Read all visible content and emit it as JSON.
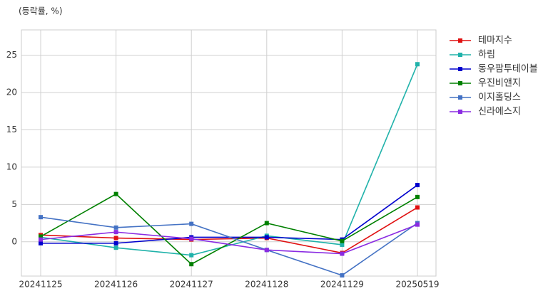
{
  "chart_data": {
    "type": "line",
    "y_label": "(등락률, %)",
    "categories": [
      "20241125",
      "20241126",
      "20241127",
      "20241128",
      "20241129",
      "20250519"
    ],
    "series": [
      {
        "name": "테마지수",
        "color": "#e01010",
        "values": [
          0.9,
          0.5,
          0.3,
          0.5,
          -1.5,
          4.6
        ]
      },
      {
        "name": "하림",
        "color": "#20b2aa",
        "values": [
          0.6,
          -0.8,
          -1.8,
          0.8,
          -0.4,
          23.8
        ]
      },
      {
        "name": "동우팜투테이블",
        "color": "#0000cd",
        "values": [
          -0.2,
          -0.2,
          0.6,
          0.6,
          0.3,
          7.6
        ]
      },
      {
        "name": "우진비앤지",
        "color": "#008000",
        "values": [
          0.7,
          6.4,
          -3.0,
          2.5,
          0.1,
          6.0
        ]
      },
      {
        "name": "이지홀딩스",
        "color": "#4472c4",
        "values": [
          3.3,
          1.9,
          2.4,
          -1.1,
          -4.5,
          2.5
        ]
      },
      {
        "name": "신라에스지",
        "color": "#8a2be2",
        "values": [
          0.3,
          1.3,
          0.4,
          -1.1,
          -1.6,
          2.3
        ]
      }
    ],
    "ylim": [
      -4.6,
      28.4
    ],
    "yticks": [
      0,
      5,
      10,
      15,
      20,
      25
    ],
    "grid": true,
    "legend": "outside-right"
  }
}
